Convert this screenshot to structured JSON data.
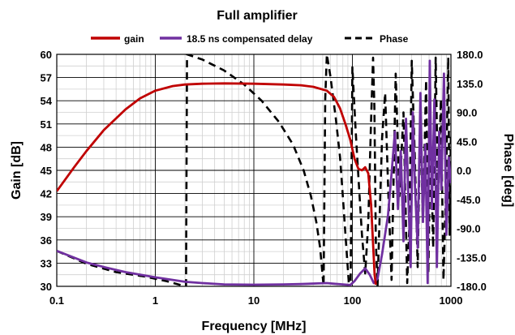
{
  "chart_data": {
    "type": "line",
    "title": "Full amplifier",
    "xlabel": "Frequency [MHz]",
    "ylabel": "Gain [dB]",
    "y2label": "Phase [deg]",
    "x_scale": "log",
    "xlim": [
      0.1,
      1000
    ],
    "ylim": [
      30,
      60
    ],
    "y2lim": [
      -180,
      180
    ],
    "grid": true,
    "legend_position": "top",
    "x_ticks": [
      "0.1",
      "1",
      "10",
      "100",
      "1000"
    ],
    "y_ticks": [
      "30",
      "33",
      "36",
      "39",
      "42",
      "45",
      "48",
      "51",
      "54",
      "57",
      "60"
    ],
    "y2_ticks": [
      "-180.0",
      "-135.0",
      "-90.0",
      "-45.0",
      "0.0",
      "45.0",
      "90.0",
      "135.0",
      "180.0"
    ],
    "series": [
      {
        "name": "gain",
        "axis": "left",
        "color": "#c00000",
        "dash": "solid",
        "points": [
          [
            0.1,
            42.3
          ],
          [
            0.15,
            45.4
          ],
          [
            0.2,
            47.5
          ],
          [
            0.3,
            50.2
          ],
          [
            0.5,
            52.9
          ],
          [
            0.7,
            54.3
          ],
          [
            1.0,
            55.3
          ],
          [
            1.5,
            55.9
          ],
          [
            2,
            56.1
          ],
          [
            3,
            56.2
          ],
          [
            5,
            56.25
          ],
          [
            10,
            56.2
          ],
          [
            20,
            56.1
          ],
          [
            30,
            56.0
          ],
          [
            40,
            55.8
          ],
          [
            55,
            55.3
          ],
          [
            65,
            54.5
          ],
          [
            75,
            53.0
          ],
          [
            85,
            51.0
          ],
          [
            95,
            49.0
          ],
          [
            105,
            46.5
          ],
          [
            115,
            45.2
          ],
          [
            125,
            45.0
          ],
          [
            135,
            45.4
          ],
          [
            145,
            44.6
          ],
          [
            155,
            40.5
          ],
          [
            162,
            35.5
          ],
          [
            168,
            31.5
          ],
          [
            173,
            30.2
          ]
        ]
      },
      {
        "name": "18.5 ns compensated delay",
        "axis": "right",
        "color": "#7030a0",
        "dash": "solid",
        "points": [
          [
            0.1,
            -125
          ],
          [
            0.2,
            -143
          ],
          [
            0.3,
            -150
          ],
          [
            0.5,
            -158
          ],
          [
            1.0,
            -166
          ],
          [
            2,
            -173
          ],
          [
            3,
            -175
          ],
          [
            5,
            -177
          ],
          [
            10,
            -177.5
          ],
          [
            20,
            -177
          ],
          [
            30,
            -176.5
          ],
          [
            45,
            -175.5
          ],
          [
            55,
            -175
          ],
          [
            65,
            -176
          ],
          [
            80,
            -177
          ],
          [
            95,
            -178
          ],
          [
            105,
            -172
          ],
          [
            120,
            -160
          ],
          [
            135,
            -152
          ],
          [
            150,
            -162
          ],
          [
            165,
            -175
          ],
          [
            180,
            -168
          ],
          [
            200,
            -130
          ],
          [
            230,
            -70
          ],
          [
            250,
            -5
          ],
          [
            270,
            60
          ],
          [
            290,
            -60
          ],
          [
            310,
            30
          ],
          [
            330,
            -110
          ],
          [
            350,
            80
          ],
          [
            370,
            -40
          ],
          [
            390,
            -150
          ],
          [
            410,
            90
          ],
          [
            430,
            -20
          ],
          [
            460,
            -120
          ],
          [
            490,
            120
          ],
          [
            520,
            -80
          ],
          [
            550,
            40
          ],
          [
            580,
            -175
          ],
          [
            610,
            170
          ],
          [
            640,
            -60
          ],
          [
            680,
            110
          ],
          [
            720,
            -150
          ],
          [
            760,
            60
          ],
          [
            800,
            -30
          ],
          [
            850,
            150
          ],
          [
            900,
            -100
          ],
          [
            950,
            20
          ],
          [
            1000,
            -20
          ]
        ]
      },
      {
        "name": "Phase",
        "axis": "right",
        "color": "#000000",
        "dash": "dashed",
        "points": [
          [
            0.1,
            -125
          ],
          [
            0.2,
            -145
          ],
          [
            0.4,
            -158
          ],
          [
            0.8,
            -165
          ],
          [
            1.3,
            -172
          ],
          [
            1.9,
            -179
          ],
          [
            2.05,
            -179
          ],
          [
            2.1,
            180
          ],
          [
            3,
            172
          ],
          [
            5,
            155
          ],
          [
            8,
            133
          ],
          [
            12,
            108
          ],
          [
            18,
            75
          ],
          [
            25,
            40
          ],
          [
            32,
            0
          ],
          [
            38,
            -40
          ],
          [
            43,
            -80
          ],
          [
            47,
            -120
          ],
          [
            50,
            -165
          ],
          [
            51,
            -179
          ],
          [
            53,
            110
          ],
          [
            55,
            180
          ],
          [
            60,
            145
          ],
          [
            68,
            80
          ],
          [
            75,
            20
          ],
          [
            80,
            -40
          ],
          [
            86,
            -110
          ],
          [
            92,
            -175
          ],
          [
            96,
            -175
          ],
          [
            100,
            160
          ],
          [
            108,
            60
          ],
          [
            115,
            -10
          ],
          [
            125,
            -100
          ],
          [
            135,
            -160
          ],
          [
            145,
            -80
          ],
          [
            155,
            80
          ],
          [
            162,
            175
          ],
          [
            167,
            100
          ],
          [
            173,
            -110
          ],
          [
            180,
            -179
          ],
          [
            190,
            -60
          ],
          [
            200,
            50
          ],
          [
            215,
            120
          ],
          [
            230,
            -20
          ],
          [
            250,
            -170
          ],
          [
            275,
            150
          ],
          [
            300,
            -40
          ],
          [
            330,
            90
          ],
          [
            360,
            -175
          ],
          [
            380,
            -80
          ],
          [
            400,
            170
          ],
          [
            430,
            20
          ],
          [
            460,
            -150
          ],
          [
            490,
            90
          ],
          [
            520,
            -80
          ],
          [
            560,
            140
          ],
          [
            590,
            -160
          ],
          [
            620,
            60
          ],
          [
            660,
            -120
          ],
          [
            700,
            175
          ],
          [
            740,
            -40
          ],
          [
            790,
            110
          ],
          [
            840,
            -170
          ],
          [
            890,
            -30
          ],
          [
            940,
            175
          ],
          [
            970,
            -100
          ],
          [
            1000,
            60
          ]
        ]
      }
    ]
  }
}
